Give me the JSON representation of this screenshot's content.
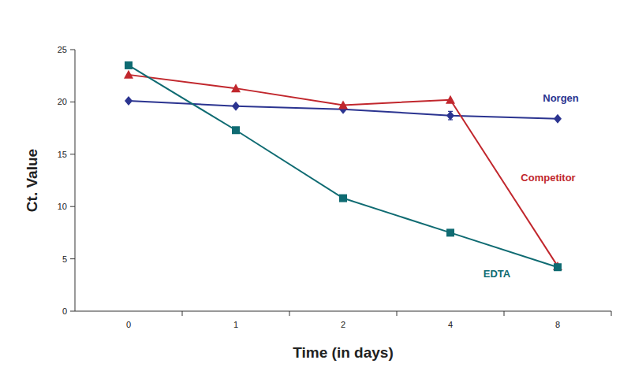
{
  "chart_data": {
    "type": "line",
    "x_label": "Time (in days)",
    "y_label": "Ct. Value",
    "categories": [
      "0",
      "1",
      "2",
      "4",
      "8"
    ],
    "ylim": [
      0,
      25
    ],
    "yticks": [
      0,
      5,
      10,
      15,
      20,
      25
    ],
    "grid": false,
    "series": [
      {
        "name": "Norgen",
        "color": "#2b3490",
        "marker": "diamond",
        "values": [
          20.1,
          19.6,
          19.3,
          18.7,
          18.4
        ],
        "errors": [
          null,
          null,
          null,
          0.4,
          null
        ]
      },
      {
        "name": "Competitor",
        "color": "#c1272d",
        "marker": "triangle",
        "values": [
          22.6,
          21.3,
          19.7,
          20.2,
          4.3
        ]
      },
      {
        "name": "EDTA",
        "color": "#0f6b72",
        "marker": "square",
        "values": [
          23.5,
          17.3,
          10.8,
          7.5,
          4.2
        ]
      }
    ]
  }
}
